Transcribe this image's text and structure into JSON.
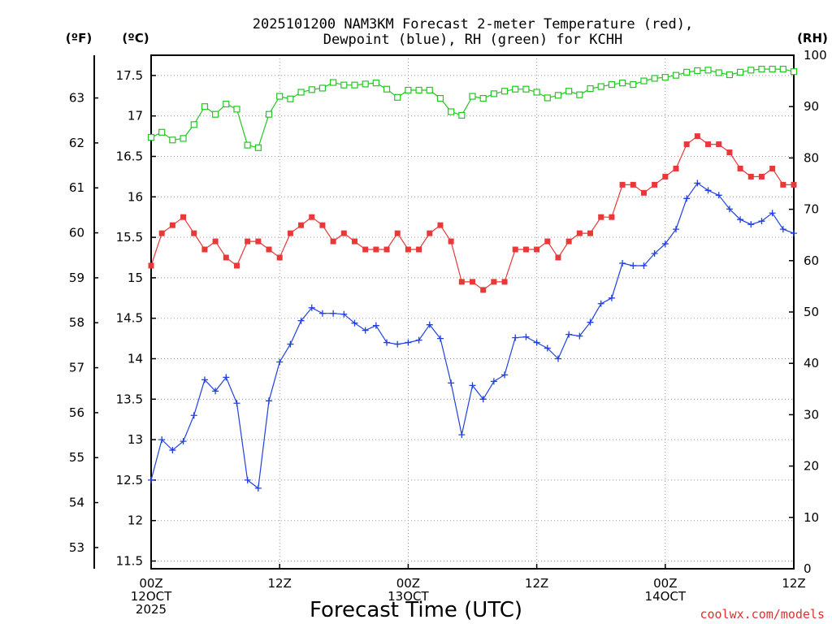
{
  "chart_data": {
    "type": "line",
    "title_line1": "2025101200 NAM3KM Forecast 2-meter Temperature (red),",
    "title_line2": "Dewpoint (blue), RH (green) for KCHH",
    "unit_f": "(ºF)",
    "unit_c": "(ºC)",
    "unit_rh": "(RH)",
    "xlabel": "Forecast Time (UTC)",
    "credit": "coolwx.com/models",
    "x_ticks": [
      {
        "hour": 0,
        "l1": "00Z",
        "l2": "12OCT",
        "l3": "2025"
      },
      {
        "hour": 12,
        "l1": "12Z",
        "l2": "",
        "l3": ""
      },
      {
        "hour": 24,
        "l1": "00Z",
        "l2": "13OCT",
        "l3": ""
      },
      {
        "hour": 36,
        "l1": "12Z",
        "l2": "",
        "l3": ""
      },
      {
        "hour": 48,
        "l1": "00Z",
        "l2": "14OCT",
        "l3": ""
      },
      {
        "hour": 60,
        "l1": "12Z",
        "l2": "",
        "l3": ""
      }
    ],
    "xlim": [
      0,
      60
    ],
    "c_ticks": [
      "11.5",
      "12",
      "12.5",
      "13",
      "13.5",
      "14",
      "14.5",
      "15",
      "15.5",
      "16",
      "16.5",
      "17",
      "17.5"
    ],
    "c_lim": [
      11.5,
      17.5
    ],
    "f_ticks": [
      "53",
      "54",
      "55",
      "56",
      "57",
      "58",
      "59",
      "60",
      "61",
      "62",
      "63"
    ],
    "rh_ticks": [
      "0",
      "10",
      "20",
      "30",
      "40",
      "50",
      "60",
      "70",
      "80",
      "90",
      "100"
    ],
    "rh_lim": [
      0,
      100
    ],
    "x": [
      0,
      1,
      2,
      3,
      4,
      5,
      6,
      7,
      8,
      9,
      10,
      11,
      12,
      13,
      14,
      15,
      16,
      17,
      18,
      19,
      20,
      21,
      22,
      23,
      24,
      25,
      26,
      27,
      28,
      29,
      30,
      31,
      32,
      33,
      34,
      35,
      36,
      37,
      38,
      39,
      40,
      41,
      42,
      43,
      44,
      45,
      46,
      47,
      48,
      49,
      50,
      51,
      52,
      53,
      54,
      55,
      56,
      57,
      58,
      59,
      60
    ],
    "series": [
      {
        "name": "Temperature (C)",
        "color": "#e83838",
        "marker": "filled-square",
        "values": [
          15.15,
          15.55,
          15.65,
          15.75,
          15.55,
          15.35,
          15.45,
          15.25,
          15.15,
          15.45,
          15.45,
          15.35,
          15.25,
          15.55,
          15.65,
          15.75,
          15.65,
          15.45,
          15.55,
          15.45,
          15.35,
          15.35,
          15.35,
          15.55,
          15.35,
          15.35,
          15.55,
          15.65,
          15.45,
          14.95,
          14.95,
          14.85,
          14.95,
          14.95,
          15.35,
          15.35,
          15.35,
          15.45,
          15.25,
          15.45,
          15.55,
          15.55,
          15.75,
          15.75,
          16.15,
          16.15,
          16.05,
          16.15,
          16.25,
          16.35,
          16.65,
          16.75,
          16.65,
          16.65,
          16.55,
          16.35,
          16.25,
          16.25,
          16.35,
          16.15,
          16.15
        ]
      },
      {
        "name": "Dewpoint (C)",
        "color": "#2040e0",
        "marker": "plus",
        "values": [
          12.5,
          13.0,
          12.87,
          12.98,
          13.3,
          13.74,
          13.6,
          13.77,
          13.45,
          12.5,
          12.4,
          13.48,
          13.96,
          14.18,
          14.47,
          14.63,
          14.56,
          14.56,
          14.55,
          14.44,
          14.35,
          14.41,
          14.2,
          14.18,
          14.2,
          14.23,
          14.42,
          14.25,
          13.7,
          13.06,
          13.67,
          13.5,
          13.72,
          13.8,
          14.26,
          14.27,
          14.2,
          14.13,
          14.0,
          14.3,
          14.28,
          14.45,
          14.68,
          14.75,
          15.18,
          15.15,
          15.15,
          15.3,
          15.42,
          15.6,
          15.98,
          16.17,
          16.08,
          16.02,
          15.85,
          15.72,
          15.66,
          15.7,
          15.8,
          15.6,
          15.55
        ]
      },
      {
        "name": "RH (%)",
        "color": "#20c820",
        "marker": "open-square",
        "axis": "rh",
        "values": [
          84,
          85,
          83.5,
          83.8,
          86.5,
          90,
          88.5,
          90.5,
          89.5,
          82.5,
          82,
          88.5,
          92,
          91.5,
          92.8,
          93.3,
          93.6,
          94.7,
          94.2,
          94.2,
          94.4,
          94.6,
          93.4,
          91.8,
          93.2,
          93.2,
          93.2,
          91.6,
          89,
          88.3,
          92,
          91.6,
          92.5,
          93,
          93.4,
          93.4,
          92.8,
          91.7,
          92.2,
          93,
          92.3,
          93.5,
          93.9,
          94.3,
          94.6,
          94.3,
          95,
          95.5,
          95.7,
          96.1,
          96.7,
          97,
          97.1,
          96.6,
          96.2,
          96.7,
          97.1,
          97.3,
          97.3,
          97.3,
          96.8
        ]
      }
    ]
  }
}
